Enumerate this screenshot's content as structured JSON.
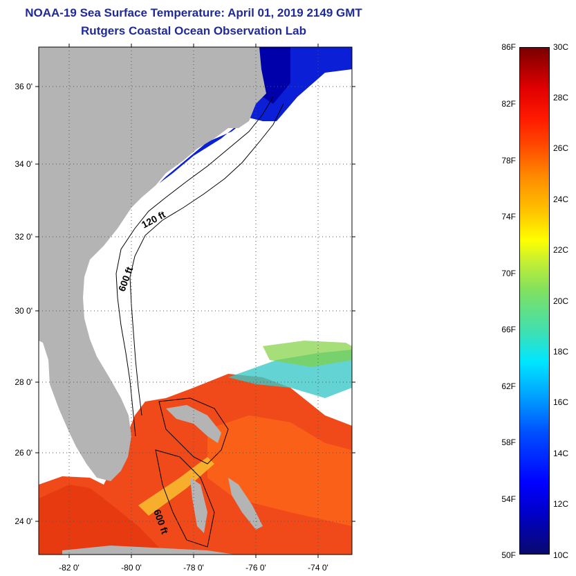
{
  "title": {
    "line1": "NOAA-19 Sea Surface Temperature:  April 01, 2019 2149 GMT",
    "line2": "Rutgers Coastal Ocean Observation Lab"
  },
  "map": {
    "lat_labels": [
      "36 0'",
      "34 0'",
      "32 0'",
      "30 0'",
      "28 0'",
      "26 0'",
      "24 0'"
    ],
    "lon_labels": [
      "-82 0'",
      "-80 0'",
      "-78 0'",
      "-76 0'",
      "-74 0'"
    ],
    "contour_labels": [
      "120 ft",
      "600 ft",
      "600 ft"
    ],
    "colors": {
      "land": "#b4b4b4",
      "cloud": "#ffffff",
      "cold_water": "#0a1fd6",
      "warm_water": "#f04a1a",
      "mid_water": "#ffd23c"
    }
  },
  "colorbar": {
    "fahrenheit": [
      "86F",
      "82F",
      "78F",
      "74F",
      "70F",
      "66F",
      "62F",
      "58F",
      "54F",
      "50F"
    ],
    "celsius": [
      "30C",
      "28C",
      "26C",
      "24C",
      "22C",
      "20C",
      "18C",
      "16C",
      "14C",
      "12C",
      "10C"
    ]
  }
}
